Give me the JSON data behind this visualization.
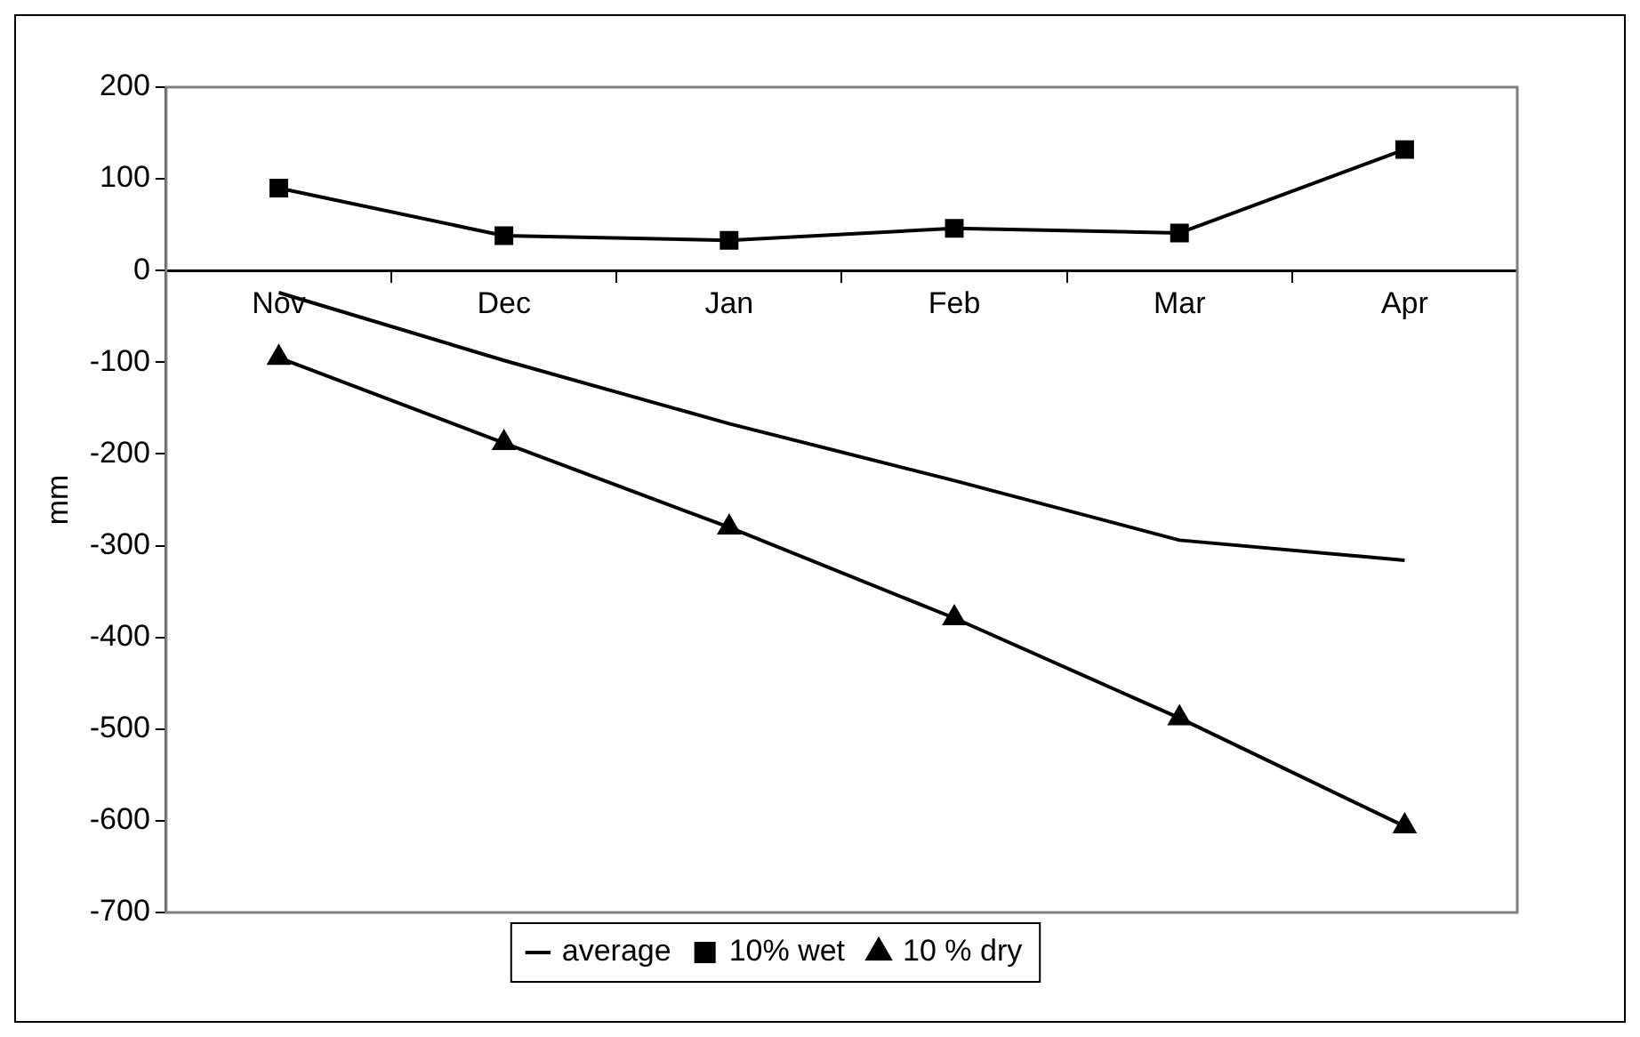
{
  "chart_data": {
    "type": "line",
    "ylabel": "mm",
    "categories": [
      "Nov",
      "Dec",
      "Jan",
      "Feb",
      "Mar",
      "Apr"
    ],
    "series": [
      {
        "name": "average",
        "color": "#000000",
        "marker": "none",
        "values": [
          -24,
          -98,
          -167,
          -229,
          -294,
          -316
        ]
      },
      {
        "name": "10% wet",
        "color": "#000000",
        "marker": "square",
        "values": [
          90,
          38,
          33,
          46,
          41,
          132
        ]
      },
      {
        "name": "10 % dry",
        "color": "#000000",
        "marker": "triangle",
        "values": [
          -95,
          -188,
          -280,
          -379,
          -488,
          -606
        ]
      }
    ],
    "ylim": [
      -700,
      200
    ],
    "yticks": [
      -700,
      -600,
      -500,
      -400,
      -300,
      -200,
      -100,
      0,
      100,
      200
    ],
    "grid": false,
    "legend": "bottom"
  }
}
